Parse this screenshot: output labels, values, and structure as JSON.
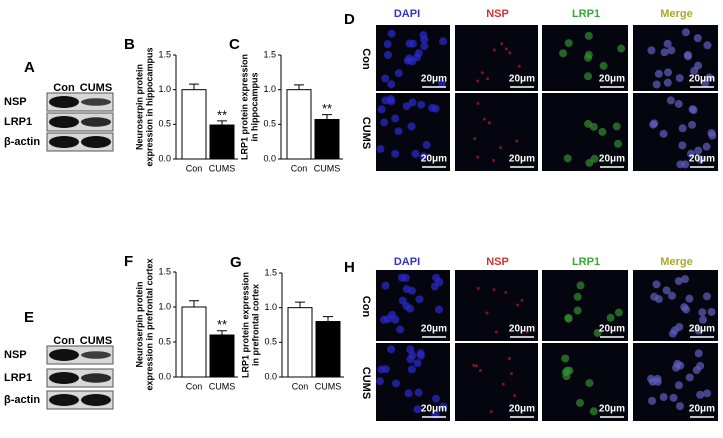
{
  "blots": [
    {
      "panel": "A",
      "columns": [
        "Con",
        "CUMS"
      ],
      "rows": [
        "NSP",
        "LRP1",
        "β-actin"
      ]
    },
    {
      "panel": "E",
      "columns": [
        "Con",
        "CUMS"
      ],
      "rows": [
        "NSP",
        "LRP1",
        "β-actin"
      ]
    }
  ],
  "chart_data": [
    {
      "type": "bar",
      "panel": "B",
      "ylabel": [
        "Neuroserpin protein",
        "expression in hippocampus"
      ],
      "categories": [
        "Con",
        "CUMS"
      ],
      "values": [
        1.0,
        0.49
      ],
      "errors": [
        0.08,
        0.06
      ],
      "colors": [
        "#ffffff",
        "#000000"
      ],
      "annotation": "**",
      "ylim": [
        0,
        1.5
      ],
      "yticks": [
        {
          "value": 0,
          "label": "0.0"
        },
        0.5,
        {
          "value": 1,
          "label": "1.0"
        },
        1.5
      ]
    },
    {
      "type": "bar",
      "panel": "C",
      "ylabel": [
        "LRP1 protein expression",
        "in hippocampus"
      ],
      "categories": [
        "Con",
        "CUMS"
      ],
      "values": [
        1.0,
        0.57
      ],
      "errors": [
        0.07,
        0.07
      ],
      "colors": [
        "#ffffff",
        "#000000"
      ],
      "annotation": "**",
      "ylim": [
        0,
        1.5
      ],
      "yticks": [
        {
          "value": 0,
          "label": "0.0"
        },
        0.5,
        {
          "value": 1,
          "label": "1.0"
        },
        1.5
      ]
    },
    {
      "type": "bar",
      "panel": "F",
      "ylabel": [
        "Neuroserpin protein",
        "expression in prefrontal cortex"
      ],
      "categories": [
        "Con",
        "CUMS"
      ],
      "values": [
        1.0,
        0.6
      ],
      "errors": [
        0.09,
        0.06
      ],
      "colors": [
        "#ffffff",
        "#000000"
      ],
      "annotation": "**",
      "ylim": [
        0,
        1.5
      ],
      "yticks": [
        {
          "value": 0,
          "label": "0.0"
        },
        0.5,
        {
          "value": 1,
          "label": "1.0"
        },
        1.5
      ]
    },
    {
      "type": "bar",
      "panel": "G",
      "ylabel": [
        "LRP1 protein expression",
        "in prefrontal cortex"
      ],
      "categories": [
        "Con",
        "CUMS"
      ],
      "values": [
        1.0,
        0.8
      ],
      "errors": [
        0.08,
        0.07
      ],
      "colors": [
        "#ffffff",
        "#000000"
      ],
      "ylim": [
        0,
        1.5
      ],
      "yticks": [
        {
          "value": 0,
          "label": "0.0"
        },
        0.5,
        {
          "value": 1,
          "label": "1.0"
        },
        1.5
      ]
    }
  ],
  "microscopy": [
    {
      "panel": "D",
      "columns": [
        "DAPI",
        "NSP",
        "LRP1",
        "Merge"
      ],
      "rows": [
        "Con",
        "CUMS"
      ],
      "scale": "20μm"
    },
    {
      "panel": "H",
      "columns": [
        "DAPI",
        "NSP",
        "LRP1",
        "Merge"
      ],
      "rows": [
        "Con",
        "CUMS"
      ],
      "scale": "20μm"
    }
  ]
}
